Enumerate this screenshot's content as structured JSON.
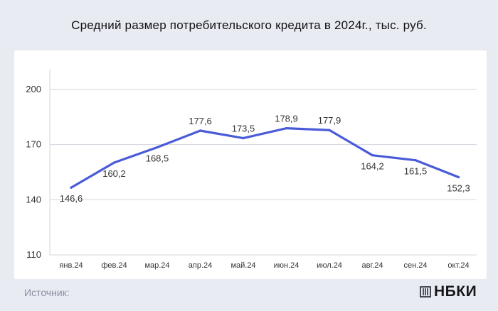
{
  "title": "Средний размер потребительского кредита в 2024г., тыс. руб.",
  "footer": {
    "source_label": "Источник:",
    "brand": "НБКИ"
  },
  "colors": {
    "line": "#4a5bd8",
    "grid": "#d4d6de",
    "axis": "#555555",
    "text": "#333333",
    "background": "#e9ebf3",
    "panel": "#ffffff"
  },
  "chart_data": {
    "type": "line",
    "title": "Средний размер потребительского кредита в 2024г., тыс. руб.",
    "xlabel": "",
    "ylabel": "",
    "categories": [
      "янв.24",
      "фев.24",
      "мар.24",
      "апр.24",
      "май.24",
      "июн.24",
      "июл.24",
      "авг.24",
      "сен.24",
      "окт.24"
    ],
    "series": [
      {
        "values": [
          146.6,
          160.2,
          168.5,
          177.6,
          173.5,
          178.9,
          177.9,
          164.2,
          161.5,
          152.3
        ]
      }
    ],
    "data_labels": [
      "146,6",
      "160,2",
      "168,5",
      "177,6",
      "173,5",
      "178,9",
      "177,9",
      "164,2",
      "161,5",
      "152,3"
    ],
    "label_positions": [
      "below",
      "below",
      "below",
      "above",
      "above",
      "above",
      "above",
      "below",
      "below",
      "below"
    ],
    "yticks": [
      110,
      140,
      170,
      200
    ],
    "ytick_labels": [
      "110",
      "140",
      "170",
      "200"
    ],
    "ylim": [
      110,
      200
    ],
    "grid": true,
    "legend": "none"
  }
}
